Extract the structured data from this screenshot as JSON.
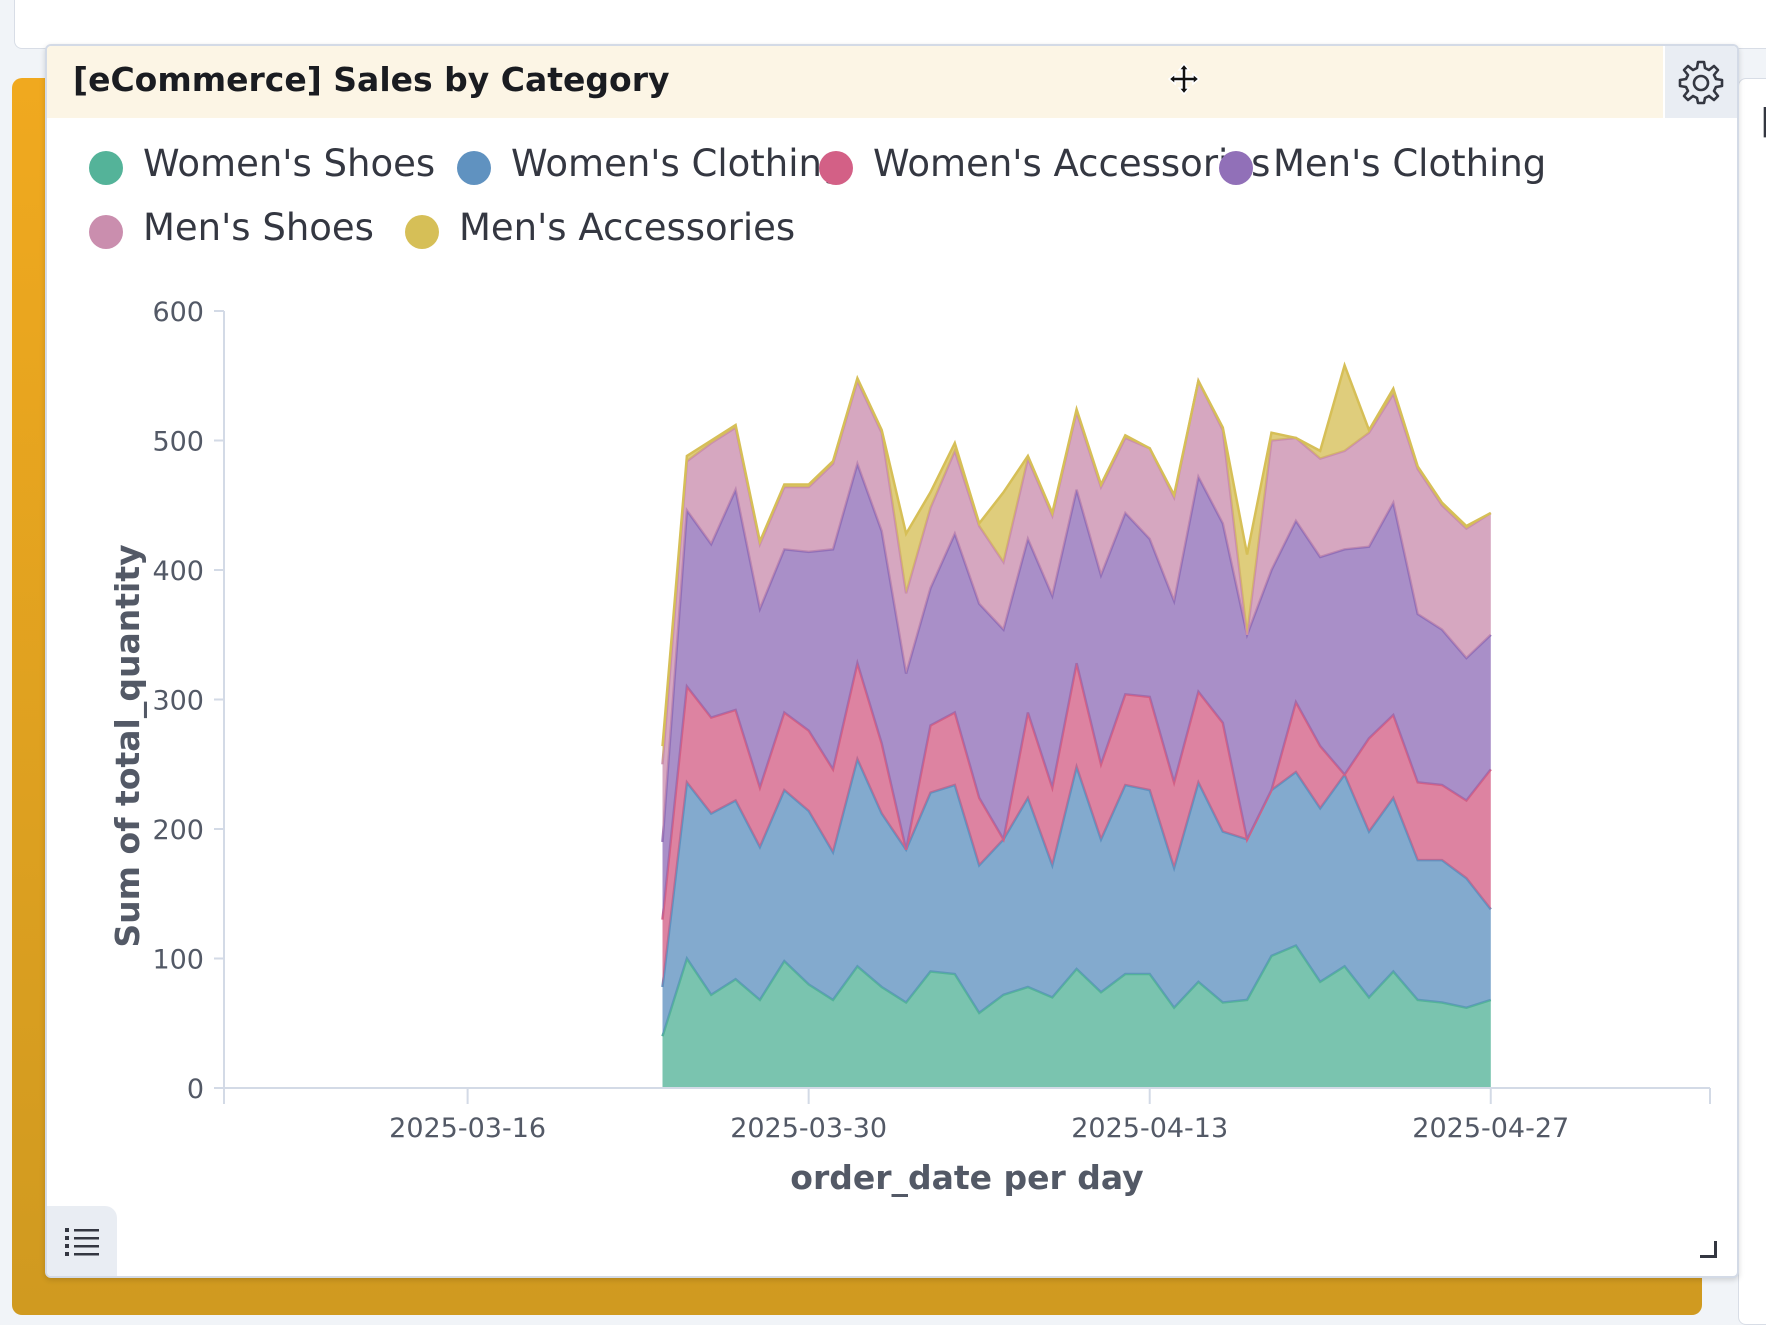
{
  "panel": {
    "title": "[eCommerce] Sales by Category"
  },
  "icons": {
    "move": "move-icon",
    "settings": "gear-icon",
    "list": "list-icon",
    "resize": "resize-handle-icon"
  },
  "chart_data": {
    "type": "area",
    "stacked": true,
    "title": "",
    "xlabel": "order_date per day",
    "ylabel": "Sum of total_quantity",
    "ylim": [
      0,
      600
    ],
    "y_ticks": [
      "0",
      "100",
      "200",
      "300",
      "400",
      "500",
      "600"
    ],
    "xlim": [
      "2025-03-06",
      "2025-05-06"
    ],
    "x_ticks": [
      "2025-03-16",
      "2025-03-30",
      "2025-04-13",
      "2025-04-27"
    ],
    "grid": false,
    "legend_position": "top",
    "x": [
      "2025-03-24",
      "2025-03-25",
      "2025-03-26",
      "2025-03-27",
      "2025-03-28",
      "2025-03-29",
      "2025-03-30",
      "2025-03-31",
      "2025-04-01",
      "2025-04-02",
      "2025-04-03",
      "2025-04-04",
      "2025-04-05",
      "2025-04-06",
      "2025-04-07",
      "2025-04-08",
      "2025-04-09",
      "2025-04-10",
      "2025-04-11",
      "2025-04-12",
      "2025-04-13",
      "2025-04-14",
      "2025-04-15",
      "2025-04-16",
      "2025-04-17",
      "2025-04-18",
      "2025-04-19",
      "2025-04-20",
      "2025-04-21",
      "2025-04-22",
      "2025-04-23",
      "2025-04-24",
      "2025-04-25",
      "2025-04-26",
      "2025-04-27"
    ],
    "series": [
      {
        "name": "Women's Shoes",
        "color": "#54b399",
        "values": [
          40,
          100,
          72,
          84,
          68,
          98,
          80,
          68,
          94,
          78,
          66,
          90,
          88,
          58,
          72,
          78,
          70,
          92,
          74,
          88,
          88,
          62,
          82,
          66,
          68,
          102,
          110,
          82,
          94,
          70,
          90,
          68,
          66,
          62,
          68
        ]
      },
      {
        "name": "Women's Clothing",
        "color": "#6092c0",
        "values": [
          38,
          136,
          140,
          138,
          118,
          132,
          134,
          114,
          160,
          134,
          118,
          138,
          146,
          114,
          120,
          146,
          102,
          156,
          118,
          146,
          142,
          108,
          154,
          132,
          124,
          128,
          134,
          134,
          148,
          128,
          134,
          108,
          110,
          100,
          70
        ]
      },
      {
        "name": "Women's Accessories",
        "color": "#d36086",
        "values": [
          52,
          74,
          74,
          70,
          46,
          60,
          62,
          64,
          74,
          54,
          0,
          52,
          56,
          52,
          0,
          66,
          60,
          80,
          58,
          70,
          72,
          66,
          70,
          84,
          0,
          0,
          54,
          48,
          0,
          72,
          64,
          60,
          58,
          60,
          108
        ]
      },
      {
        "name": "Men's Clothing",
        "color": "#9170b8",
        "values": [
          60,
          136,
          134,
          170,
          138,
          126,
          138,
          170,
          154,
          164,
          136,
          106,
          138,
          150,
          162,
          134,
          148,
          134,
          146,
          140,
          122,
          140,
          166,
          154,
          158,
          170,
          140,
          146,
          174,
          148,
          164,
          130,
          120,
          110,
          104
        ]
      },
      {
        "name": "Men's Shoes",
        "color": "#ca8eae",
        "values": [
          60,
          38,
          78,
          48,
          50,
          48,
          50,
          66,
          64,
          76,
          62,
          62,
          64,
          60,
          52,
          62,
          62,
          60,
          68,
          58,
          70,
          80,
          74,
          72,
          0,
          100,
          64,
          76,
          76,
          88,
          84,
          112,
          96,
          100,
          94
        ]
      },
      {
        "name": "Men's Accessories",
        "color": "#d6bf57",
        "values": [
          14,
          4,
          2,
          2,
          2,
          2,
          2,
          2,
          2,
          2,
          46,
          12,
          6,
          2,
          54,
          2,
          2,
          2,
          2,
          2,
          0,
          2,
          0,
          2,
          62,
          6,
          0,
          6,
          66,
          2,
          4,
          2,
          2,
          2,
          0
        ]
      }
    ]
  }
}
